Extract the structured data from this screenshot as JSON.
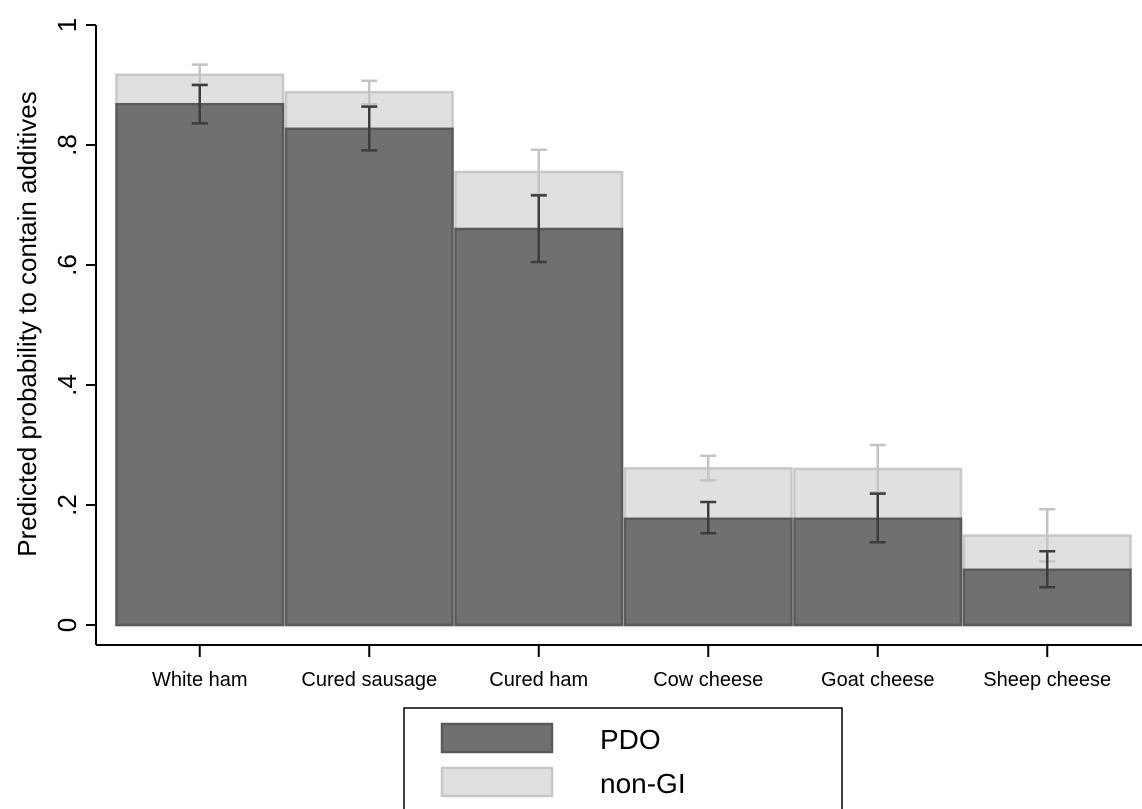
{
  "chart_data": {
    "type": "bar",
    "ylabel": "Predicted probability to contain additives",
    "xlabel": "",
    "ylim": [
      0,
      1
    ],
    "yticks": [
      0,
      0.2,
      0.4,
      0.6,
      0.8,
      1
    ],
    "ytick_labels": [
      "0",
      ".2",
      ".4",
      ".6",
      ".8",
      "1"
    ],
    "categories": [
      "White ham",
      "Cured sausage",
      "Cured ham",
      "Cow cheese",
      "Goat cheese",
      "Sheep cheese"
    ],
    "series": [
      {
        "name": "PDO",
        "color": "#707070",
        "values": [
          0.868,
          0.827,
          0.66,
          0.177,
          0.177,
          0.092
        ],
        "ci_low": [
          0.836,
          0.791,
          0.605,
          0.153,
          0.138,
          0.063
        ],
        "ci_high": [
          0.9,
          0.864,
          0.716,
          0.205,
          0.219,
          0.123
        ]
      },
      {
        "name": "non-GI",
        "color": "#e0e0e0",
        "values": [
          0.917,
          0.888,
          0.755,
          0.261,
          0.26,
          0.149
        ],
        "ci_low": [
          0.901,
          0.868,
          0.718,
          0.241,
          0.221,
          0.106
        ],
        "ci_high": [
          0.934,
          0.907,
          0.792,
          0.282,
          0.3,
          0.193
        ]
      }
    ],
    "legend_position": "bottom",
    "grid": false
  }
}
